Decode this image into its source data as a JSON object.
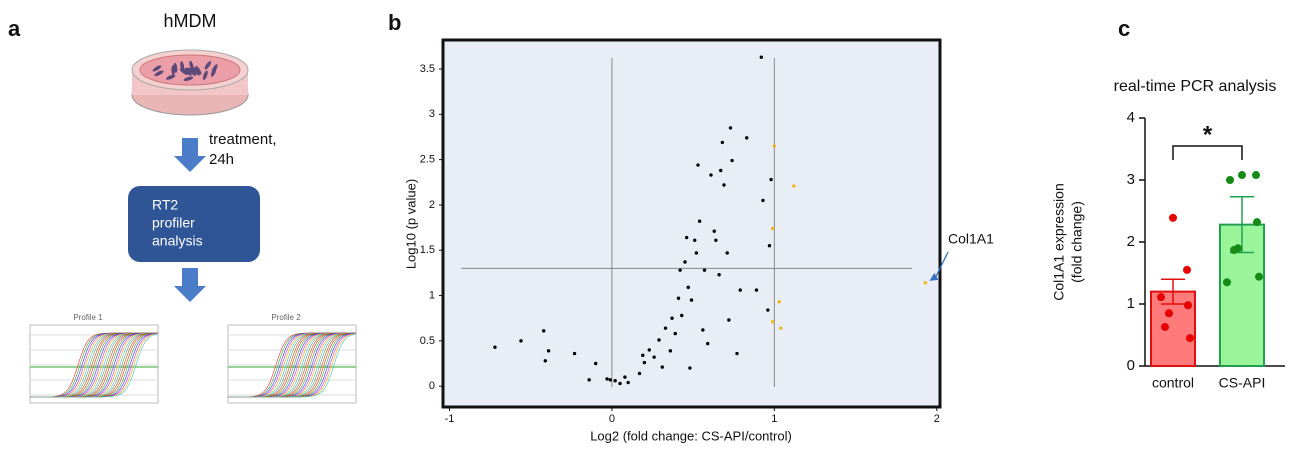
{
  "panel_labels": [
    "a",
    "b",
    "c"
  ],
  "diagram": {
    "cell_label": "hMDM",
    "step_label": [
      "treatment,",
      "24h"
    ],
    "box_label": [
      "RT2",
      "profiler",
      "analysis"
    ],
    "thumbnails": [
      "Profile 1",
      "Profile 2"
    ]
  },
  "chart_data": [
    {
      "type": "scatter",
      "xlabel": "Log2 (fold change: CS-API/control)",
      "ylabel": "Log10 (p value)",
      "xlim": [
        -1.04,
        2.02
      ],
      "ylim": [
        -0.23,
        3.82
      ],
      "xticks": [
        -1,
        0,
        1,
        2
      ],
      "yticks": [
        0,
        0.5,
        1,
        1.5,
        2,
        2.5,
        3,
        3.5
      ],
      "vlines": [
        0,
        1
      ],
      "hline": 1.3,
      "annotation": "Col1A1",
      "series": [
        {
          "color": "#000000",
          "x": [
            -0.72,
            -0.56,
            -0.42,
            -0.39,
            -0.41,
            -0.23,
            -0.14,
            -0.1,
            -0.03,
            -0.01,
            0.02,
            0.05,
            0.08,
            0.1,
            0.17,
            0.19,
            0.2,
            0.23,
            0.26,
            0.29,
            0.31,
            0.33,
            0.36,
            0.37,
            0.39,
            0.41,
            0.42,
            0.43,
            0.45,
            0.46,
            0.47,
            0.48,
            0.49,
            0.51,
            0.52,
            0.53,
            0.54,
            0.56,
            0.57,
            0.59,
            0.61,
            0.63,
            0.64,
            0.66,
            0.67,
            0.68,
            0.69,
            0.71,
            0.72,
            0.73,
            0.74,
            0.77,
            0.79,
            0.83,
            0.89,
            0.92,
            0.93,
            0.96,
            0.98,
            0.97
          ],
          "y": [
            0.43,
            0.5,
            0.61,
            0.39,
            0.28,
            0.36,
            0.07,
            0.25,
            0.08,
            0.07,
            0.06,
            0.03,
            0.1,
            0.04,
            0.14,
            0.34,
            0.26,
            0.4,
            0.32,
            0.51,
            0.21,
            0.64,
            0.39,
            0.75,
            0.58,
            0.97,
            1.28,
            0.78,
            1.37,
            1.64,
            1.09,
            0.2,
            0.95,
            1.61,
            1.47,
            2.44,
            1.82,
            0.62,
            1.28,
            0.47,
            2.33,
            1.71,
            1.61,
            1.23,
            2.38,
            2.69,
            2.22,
            1.47,
            0.73,
            2.85,
            2.49,
            0.36,
            1.06,
            2.74,
            1.06,
            3.63,
            2.05,
            0.84,
            2.28,
            1.55
          ]
        },
        {
          "color": "#f2b51c",
          "x": [
            1.0,
            1.12,
            0.99,
            1.03,
            1.04,
            0.99,
            1.93
          ],
          "y": [
            2.65,
            2.21,
            1.74,
            0.93,
            0.64,
            0.71,
            1.14
          ]
        }
      ]
    },
    {
      "type": "bar",
      "title": "real-time PCR analysis",
      "ylabel": [
        "Col1A1 expression",
        "(fold change)"
      ],
      "categories": [
        "control",
        "CS-API"
      ],
      "values": [
        1.2,
        2.28
      ],
      "errors": [
        0.2,
        0.45
      ],
      "colors": [
        "#ff7b7b",
        "#9af59a"
      ],
      "edge_colors": [
        "#e01010",
        "#22a050"
      ],
      "point_colors": [
        "#e80000",
        "#158a15"
      ],
      "points": [
        [
          2.39,
          1.55,
          1.11,
          0.98,
          0.85,
          0.63,
          0.45
        ],
        [
          3.08,
          3.08,
          3.0,
          2.32,
          1.9,
          1.87,
          1.44,
          1.35
        ]
      ],
      "ylim": [
        0,
        4
      ],
      "yticks": [
        0,
        1,
        2,
        3,
        4
      ],
      "significance": "*"
    }
  ]
}
